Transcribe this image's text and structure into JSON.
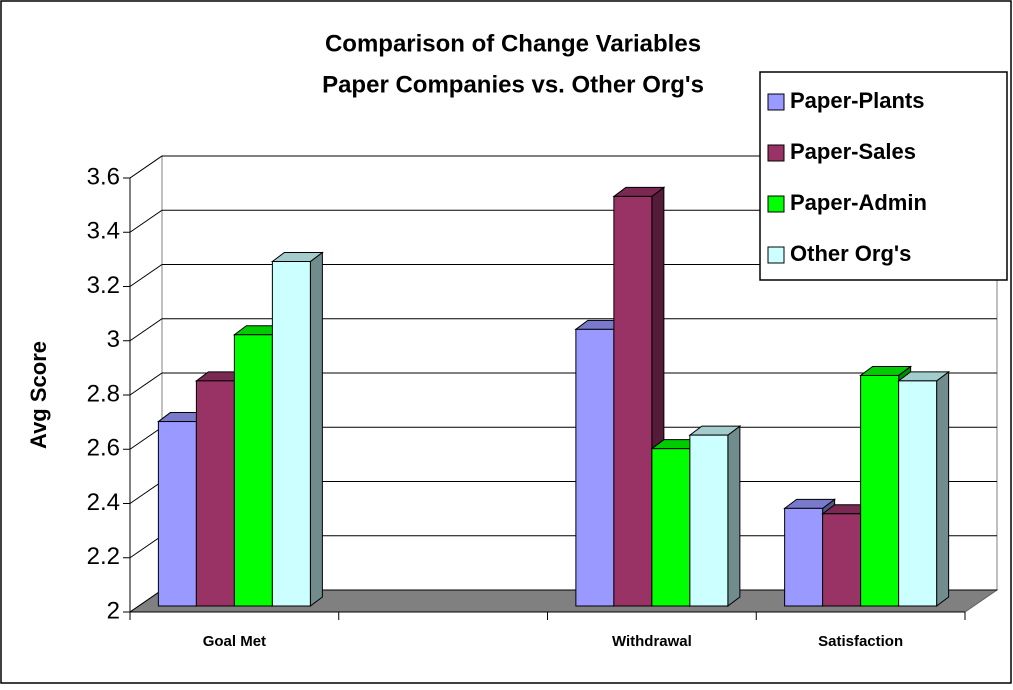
{
  "chart_data": {
    "type": "bar3d",
    "title": "Comparison of Change Variables",
    "subtitle": "Paper Companies vs. Other Org's",
    "y_label": "Avg Score",
    "categories": [
      "Goal Met",
      null,
      "Withdrawal",
      "Satisfaction"
    ],
    "series": [
      {
        "name": "Paper-Plants",
        "color": "#9999ff",
        "values": [
          2.68,
          null,
          3.02,
          2.36
        ]
      },
      {
        "name": "Paper-Sales",
        "color": "#993366",
        "values": [
          2.83,
          null,
          3.51,
          2.34
        ]
      },
      {
        "name": "Paper-Admin",
        "color": "#00ff00",
        "values": [
          3.0,
          null,
          2.58,
          2.85
        ]
      },
      {
        "name": "Other Org's",
        "color": "#ccffff",
        "values": [
          3.27,
          null,
          2.63,
          2.83
        ]
      }
    ],
    "ylim": [
      2,
      3.6
    ],
    "yticks": [
      2,
      2.2,
      2.4,
      2.6,
      2.8,
      3,
      3.2,
      3.4,
      3.6
    ],
    "grid": true,
    "legend": "right"
  }
}
